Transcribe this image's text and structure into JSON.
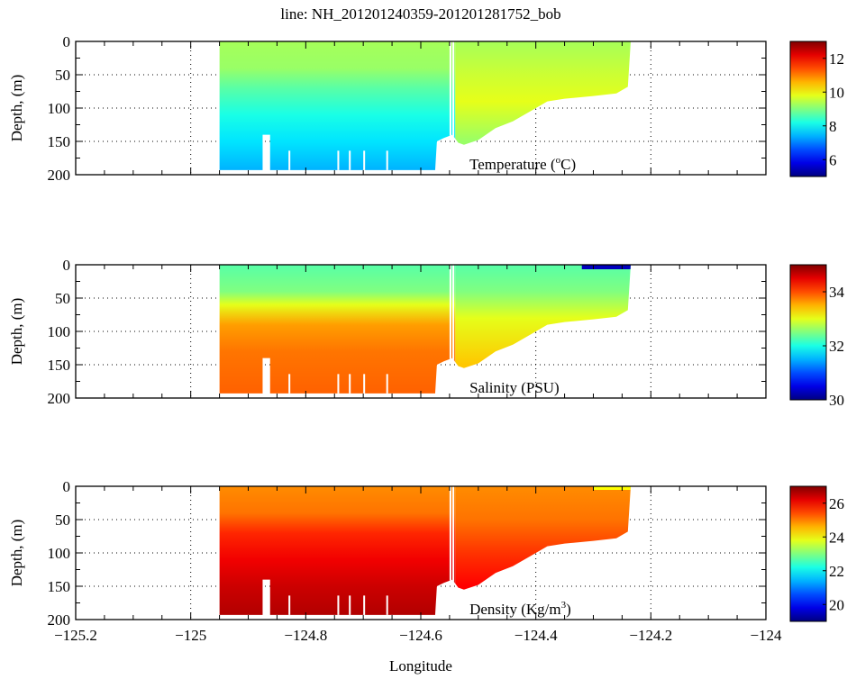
{
  "chart_data": {
    "type": "heatmap",
    "title": "line: NH_201201240359-201201281752_bob",
    "xlabel": "Longitude",
    "xlim": [
      -125.2,
      -124
    ],
    "xticks": [
      -125.2,
      -125,
      -124.8,
      -124.6,
      -124.4,
      -124.2,
      -124
    ],
    "xtick_labels": [
      "−125.2",
      "−125",
      "−124.8",
      "−124.6",
      "−124.4",
      "−124.2",
      "−124"
    ],
    "grid": true,
    "section_bottom": [
      [
        -124.95,
        193
      ],
      [
        -124.875,
        193
      ],
      [
        -124.875,
        140
      ],
      [
        -124.862,
        140
      ],
      [
        -124.862,
        193
      ],
      [
        -124.575,
        193
      ],
      [
        -124.572,
        150
      ],
      [
        -124.56,
        145
      ],
      [
        -124.545,
        140
      ],
      [
        -124.535,
        152
      ],
      [
        -124.525,
        155
      ],
      [
        -124.5,
        148
      ],
      [
        -124.47,
        130
      ],
      [
        -124.44,
        120
      ],
      [
        -124.41,
        105
      ],
      [
        -124.38,
        90
      ],
      [
        -124.35,
        86
      ],
      [
        -124.3,
        82
      ],
      [
        -124.26,
        78
      ],
      [
        -124.24,
        68
      ],
      [
        -124.235,
        0
      ]
    ],
    "panels": [
      {
        "label": "Temperature (",
        "label_sup": "o",
        "label_end": "C)",
        "ylabel": "Depth, (m)",
        "ylim": [
          0,
          200
        ],
        "yticks": [
          0,
          50,
          100,
          150,
          200
        ],
        "colorbar": {
          "range": [
            5,
            13
          ],
          "ticks": [
            6,
            8,
            10,
            12
          ]
        },
        "offshore_profile": [
          [
            0,
            9.3
          ],
          [
            40,
            9.2
          ],
          [
            70,
            8.7
          ],
          [
            110,
            8.2
          ],
          [
            150,
            7.8
          ],
          [
            193,
            7.4
          ]
        ],
        "inshore_profile": [
          [
            0,
            9.3
          ],
          [
            50,
            9.6
          ],
          [
            90,
            9.8
          ],
          [
            150,
            9.2
          ]
        ]
      },
      {
        "label": "Salinity (PSU)",
        "label_sup": "",
        "label_end": "",
        "ylabel": "Depth, (m)",
        "ylim": [
          0,
          200
        ],
        "yticks": [
          0,
          50,
          100,
          150,
          200
        ],
        "colorbar": {
          "range": [
            30,
            35
          ],
          "ticks": [
            30,
            32,
            34
          ]
        },
        "offshore_profile": [
          [
            0,
            32.3
          ],
          [
            40,
            32.5
          ],
          [
            60,
            33.0
          ],
          [
            90,
            33.6
          ],
          [
            130,
            33.8
          ],
          [
            193,
            33.9
          ]
        ],
        "inshore_profile": [
          [
            0,
            32.3
          ],
          [
            40,
            32.5
          ],
          [
            80,
            33.0
          ],
          [
            150,
            33.4
          ]
        ]
      },
      {
        "label": "Density (Kg/m",
        "label_sup": "3",
        "label_end": ")",
        "ylabel": "Depth, (m)",
        "ylim": [
          0,
          200
        ],
        "yticks": [
          0,
          50,
          100,
          150,
          200
        ],
        "colorbar": {
          "range": [
            19,
            27
          ],
          "ticks": [
            20,
            22,
            24,
            26
          ]
        },
        "offshore_profile": [
          [
            0,
            24.9
          ],
          [
            40,
            25.1
          ],
          [
            70,
            25.7
          ],
          [
            110,
            26.1
          ],
          [
            150,
            26.4
          ],
          [
            193,
            26.6
          ]
        ],
        "inshore_profile": [
          [
            0,
            24.9
          ],
          [
            50,
            25.1
          ],
          [
            100,
            25.6
          ],
          [
            150,
            26.0
          ]
        ]
      }
    ]
  }
}
